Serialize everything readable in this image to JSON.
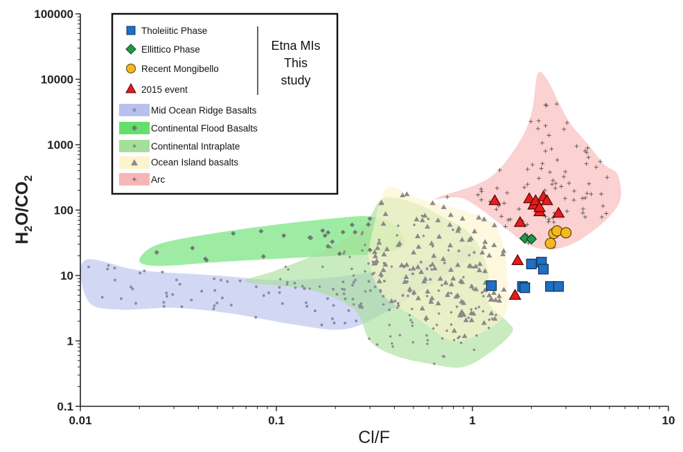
{
  "chart_data": {
    "type": "scatter",
    "xscale": "log",
    "yscale": "log",
    "xlim": [
      0.01,
      10
    ],
    "ylim": [
      0.1,
      100000
    ],
    "xlabel": "Cl/F",
    "ylabel_parts": [
      "H",
      "2",
      "O/CO",
      "2"
    ],
    "x_ticks": [
      "0.01",
      "0.1",
      "1",
      "10"
    ],
    "y_ticks": [
      "0.1",
      "1",
      "10",
      "100",
      "1000",
      "10000",
      "100000"
    ],
    "grid": false,
    "legend_placement": "top-left",
    "legend_side_label": [
      "Etna MIs",
      "This",
      "study"
    ],
    "series": [
      {
        "name": "Tholeiitic Phase",
        "marker": "square",
        "color": "#1f6fc2",
        "points": [
          [
            1.25,
            7
          ],
          [
            1.8,
            6.8
          ],
          [
            1.85,
            6.5
          ],
          [
            2.0,
            15
          ],
          [
            2.25,
            16
          ],
          [
            2.3,
            12.5
          ],
          [
            2.5,
            6.8
          ],
          [
            2.75,
            6.8
          ]
        ]
      },
      {
        "name": "Ellittico Phase",
        "marker": "diamond",
        "color": "#1f9a4a",
        "points": [
          [
            1.85,
            37
          ],
          [
            2.0,
            36
          ]
        ]
      },
      {
        "name": "Recent Mongibello",
        "marker": "circle",
        "color": "#f5b820",
        "points": [
          [
            2.5,
            31
          ],
          [
            2.6,
            44
          ],
          [
            2.7,
            48
          ],
          [
            3.0,
            45
          ]
        ]
      },
      {
        "name": "2015 event",
        "marker": "triangle",
        "color": "#e61c1c",
        "points": [
          [
            1.3,
            140
          ],
          [
            1.75,
            65
          ],
          [
            1.95,
            150
          ],
          [
            2.05,
            120
          ],
          [
            2.1,
            140
          ],
          [
            2.2,
            95
          ],
          [
            2.2,
            110
          ],
          [
            2.3,
            160
          ],
          [
            2.4,
            140
          ],
          [
            2.75,
            90
          ],
          [
            1.7,
            17
          ],
          [
            1.65,
            5
          ]
        ]
      }
    ],
    "fields": [
      {
        "name": "Mid Ocean Ridge Basalts",
        "marker": "dot",
        "color": "#b7c0ee",
        "point_color": "#8a8f9e",
        "outline": [
          [
            0.0105,
            17
          ],
          [
            0.02,
            12
          ],
          [
            0.05,
            10
          ],
          [
            0.1,
            8.5
          ],
          [
            0.2,
            9.5
          ],
          [
            0.4,
            13
          ],
          [
            0.7,
            20
          ],
          [
            0.95,
            28
          ],
          [
            1.05,
            22
          ],
          [
            0.8,
            12
          ],
          [
            0.55,
            6
          ],
          [
            0.35,
            2.6
          ],
          [
            0.22,
            1.5
          ],
          [
            0.12,
            1.8
          ],
          [
            0.06,
            2.6
          ],
          [
            0.03,
            3.2
          ],
          [
            0.016,
            3
          ],
          [
            0.011,
            4
          ]
        ]
      },
      {
        "name": "Continental Flood Basalts",
        "marker": "diamond",
        "color": "#63e06b",
        "point_color": "#707a70",
        "outline": [
          [
            0.02,
            17
          ],
          [
            0.025,
            30
          ],
          [
            0.05,
            45
          ],
          [
            0.1,
            60
          ],
          [
            0.2,
            75
          ],
          [
            0.3,
            80
          ],
          [
            0.4,
            60
          ],
          [
            0.45,
            30
          ],
          [
            0.35,
            22
          ],
          [
            0.2,
            20
          ],
          [
            0.1,
            18
          ],
          [
            0.05,
            16
          ],
          [
            0.025,
            14
          ]
        ]
      },
      {
        "name": "Continental Intraplate",
        "marker": "small-diamond",
        "color": "#a6df9a",
        "point_color": "#8a8a8a",
        "outline": [
          [
            0.07,
            8
          ],
          [
            0.1,
            12
          ],
          [
            0.18,
            25
          ],
          [
            0.28,
            60
          ],
          [
            0.35,
            150
          ],
          [
            0.5,
            130
          ],
          [
            0.7,
            80
          ],
          [
            1.0,
            40
          ],
          [
            1.2,
            12
          ],
          [
            1.2,
            4
          ],
          [
            1.5,
            2.0
          ],
          [
            1.6,
            1.4
          ],
          [
            1.3,
            0.75
          ],
          [
            0.9,
            0.4
          ],
          [
            0.6,
            0.45
          ],
          [
            0.4,
            0.6
          ],
          [
            0.3,
            1.0
          ],
          [
            0.25,
            3
          ],
          [
            0.15,
            6
          ]
        ]
      },
      {
        "name": "Ocean Island basalts",
        "marker": "triangle",
        "color": "#fdf3cc",
        "point_color": "#8a8a8a",
        "outline": [
          [
            0.3,
            30
          ],
          [
            0.35,
            180
          ],
          [
            0.4,
            220
          ],
          [
            0.5,
            160
          ],
          [
            0.7,
            120
          ],
          [
            1.0,
            90
          ],
          [
            1.3,
            60
          ],
          [
            1.45,
            25
          ],
          [
            1.5,
            10
          ],
          [
            1.5,
            3
          ],
          [
            1.2,
            1.5
          ],
          [
            0.8,
            1.0
          ],
          [
            0.55,
            2.0
          ],
          [
            0.35,
            5
          ],
          [
            0.3,
            15
          ]
        ]
      },
      {
        "name": "Arc",
        "marker": "plus",
        "color": "#f8b5b5",
        "point_color": "#555555",
        "outline": [
          [
            0.65,
            150
          ],
          [
            1.2,
            300
          ],
          [
            1.7,
            1000
          ],
          [
            2.0,
            3000
          ],
          [
            2.15,
            12000
          ],
          [
            2.4,
            10000
          ],
          [
            2.8,
            4000
          ],
          [
            3.2,
            2000
          ],
          [
            3.9,
            1000
          ],
          [
            4.7,
            500
          ],
          [
            5.5,
            350
          ],
          [
            5.7,
            150
          ],
          [
            5.0,
            80
          ],
          [
            4.0,
            45
          ],
          [
            3.2,
            30
          ],
          [
            2.5,
            25
          ],
          [
            1.9,
            30
          ],
          [
            1.4,
            60
          ],
          [
            0.9,
            150
          ]
        ]
      }
    ]
  }
}
